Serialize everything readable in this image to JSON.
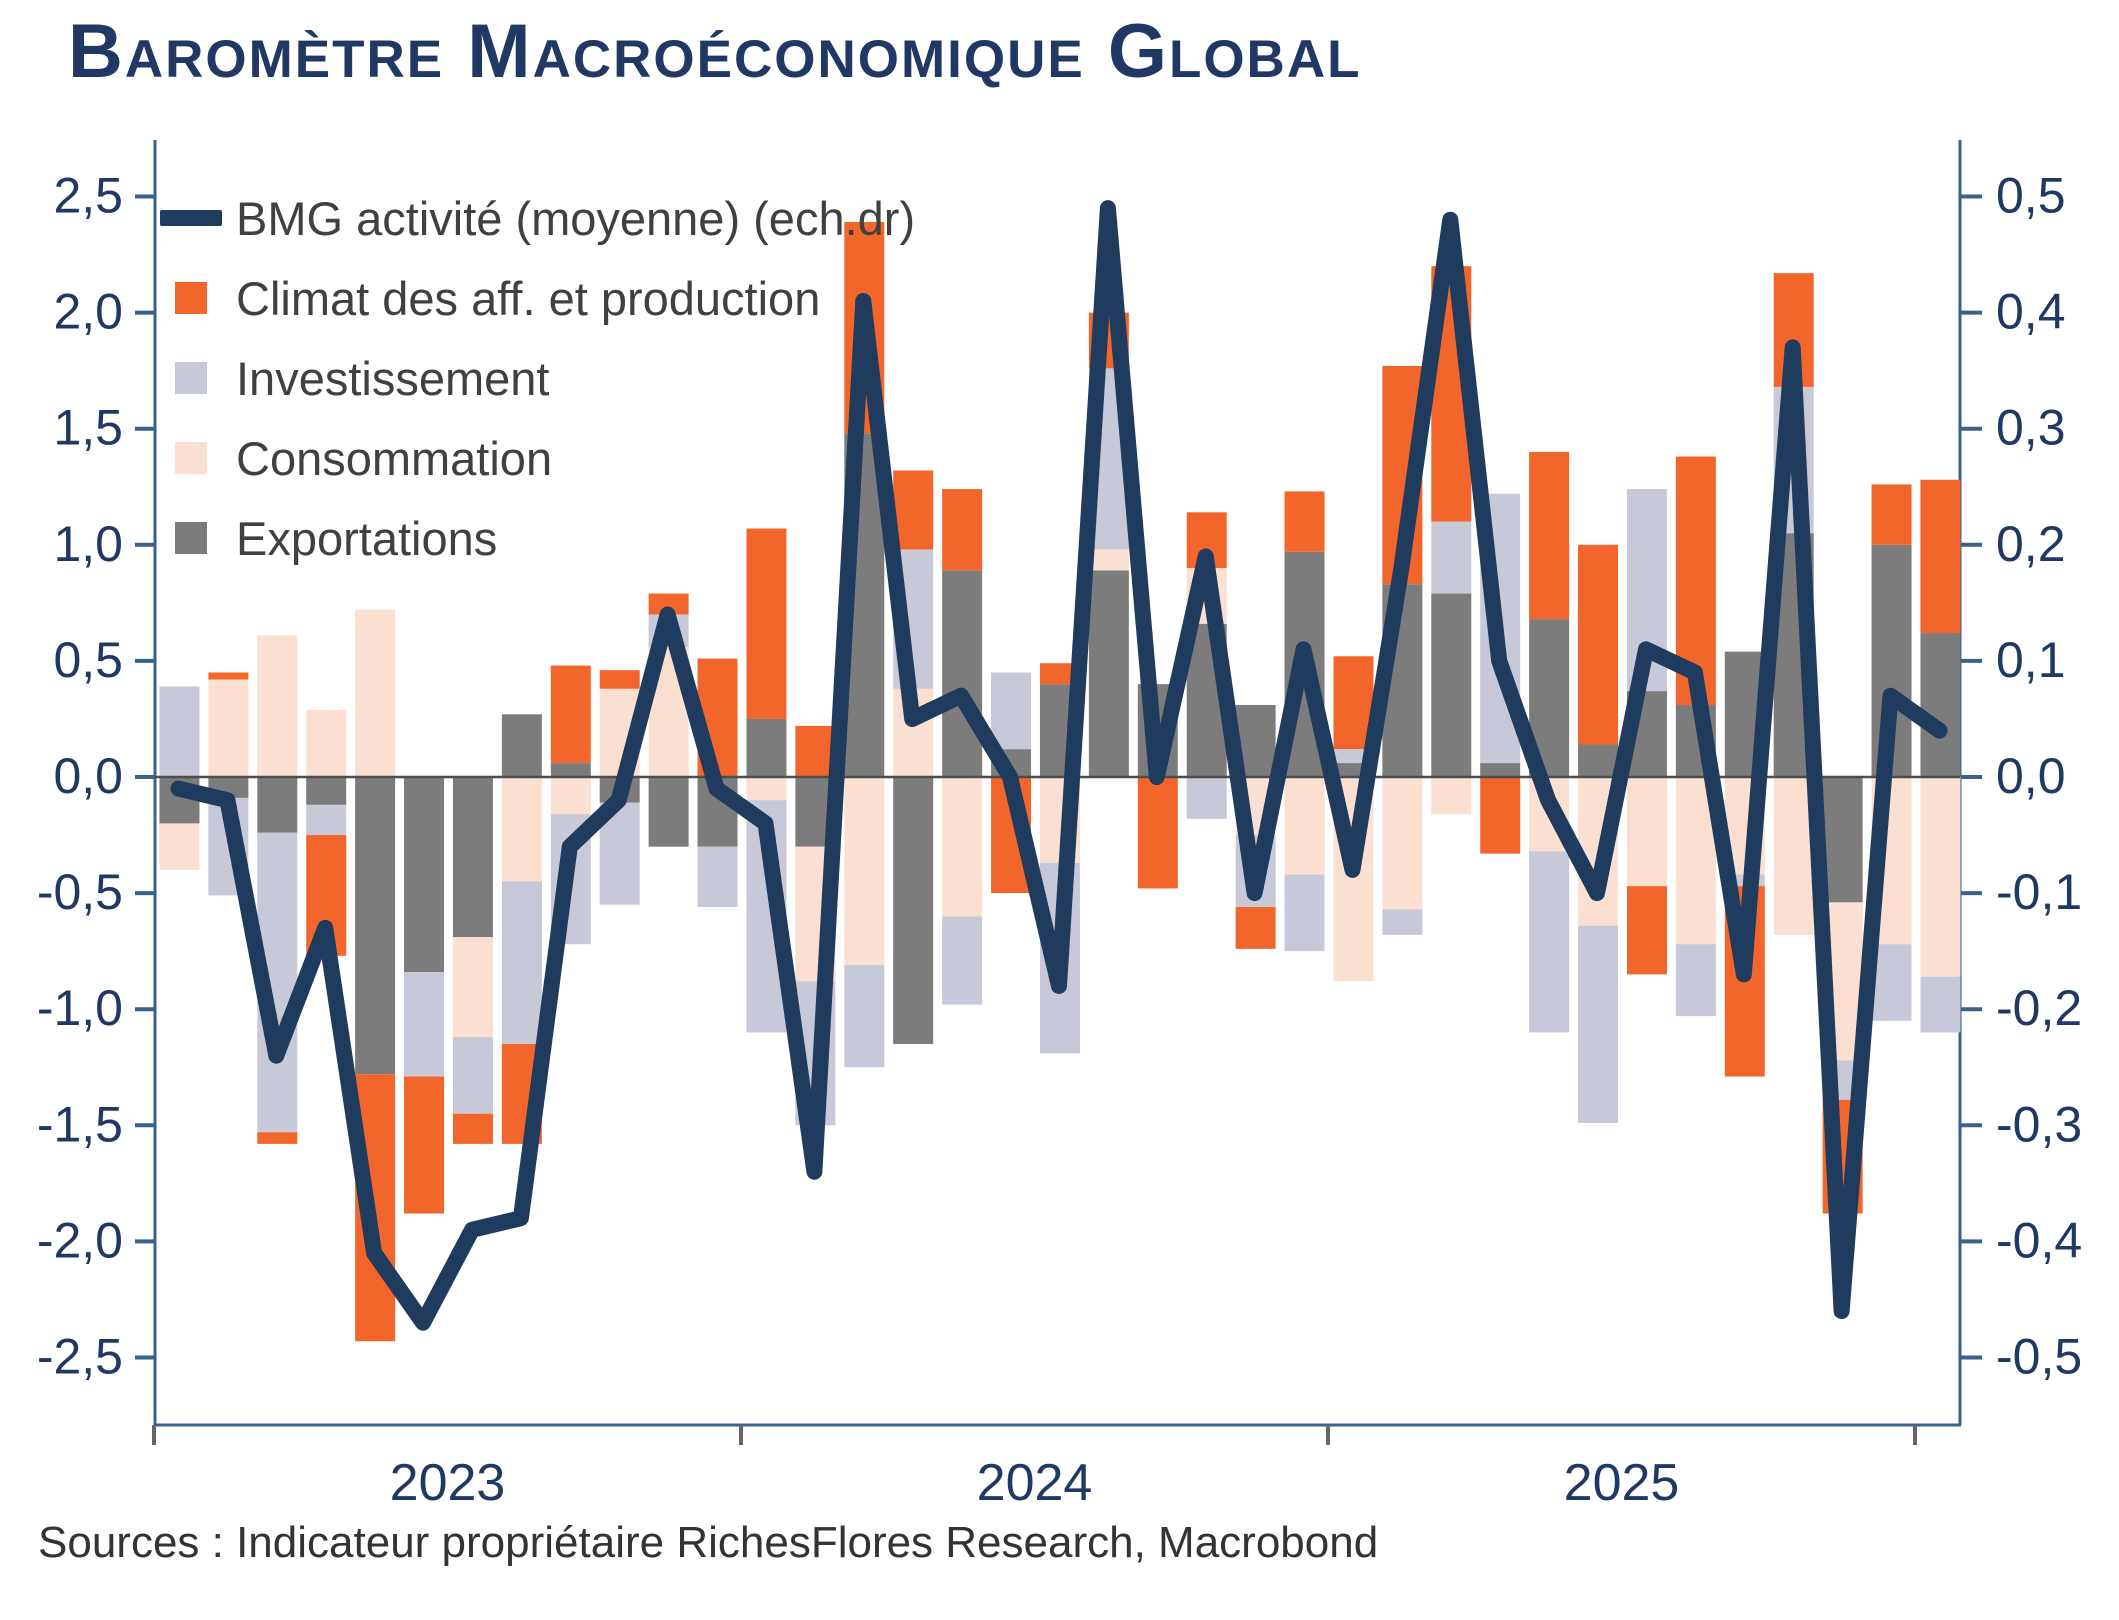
{
  "title": "Baromètre Macroéconomique Global",
  "source_note": "Sources : Indicateur propriétaire RichesFlores Research, Macrobond",
  "colors": {
    "navy_line": "#1F3B5D",
    "orange": "#F2662B",
    "lavender": "#C7C9D8",
    "peach": "#FBDFD1",
    "gray": "#7C7C7C",
    "axis_line": "#38618C",
    "axis_text": "#1F3864",
    "zero_line": "#4D4D4D",
    "year_tick": "#666666"
  },
  "chart_data": {
    "type": "combo-stacked-bar-line",
    "title": "Baromètre Macroéconomique Global",
    "grid": "off",
    "legend_position": "top-left-inside",
    "months": [
      "2023-01",
      "2023-02",
      "2023-03",
      "2023-04",
      "2023-05",
      "2023-06",
      "2023-07",
      "2023-08",
      "2023-09",
      "2023-10",
      "2023-11",
      "2023-12",
      "2024-01",
      "2024-02",
      "2024-03",
      "2024-04",
      "2024-05",
      "2024-06",
      "2024-07",
      "2024-08",
      "2024-09",
      "2024-10",
      "2024-11",
      "2024-12",
      "2025-01",
      "2025-02",
      "2025-03",
      "2025-04",
      "2025-05",
      "2025-06",
      "2025-07",
      "2025-08",
      "2025-09",
      "2025-10",
      "2025-11",
      "2025-12",
      "2026-01"
    ],
    "x_year_labels": [
      "2023",
      "2024",
      "2025"
    ],
    "left_axis": {
      "ticks": [
        2.5,
        2.0,
        1.5,
        1.0,
        0.5,
        0.0,
        -0.5,
        -1.0,
        -1.5,
        -2.0,
        -2.5
      ],
      "applies_to": "bars"
    },
    "right_axis": {
      "ticks": [
        0.5,
        0.4,
        0.3,
        0.2,
        0.1,
        0.0,
        -0.1,
        -0.2,
        -0.3,
        -0.4,
        -0.5
      ],
      "applies_to": "line"
    },
    "stack_order_from_zero": [
      "Exportations",
      "Consommation",
      "Investissement",
      "Climat des aff. et production"
    ],
    "series": [
      {
        "name": "BMG activité (moyenne) (ech.dr)",
        "type": "line",
        "axis": "right",
        "color_key": "navy_line",
        "values": [
          -0.01,
          -0.02,
          -0.24,
          -0.13,
          -0.41,
          -0.47,
          -0.39,
          -0.38,
          -0.06,
          -0.02,
          0.14,
          -0.01,
          -0.04,
          -0.34,
          0.41,
          0.05,
          0.07,
          0.0,
          -0.18,
          0.49,
          0.0,
          0.19,
          -0.1,
          0.11,
          -0.08,
          0.18,
          0.48,
          0.1,
          -0.02,
          -0.1,
          0.11,
          0.09,
          -0.17,
          0.37,
          -0.46,
          0.07,
          0.04
        ]
      },
      {
        "name": "Climat des aff. et production",
        "type": "bar",
        "axis": "left",
        "color_key": "orange",
        "values": [
          0,
          0.03,
          -0.05,
          -0.52,
          -1.15,
          -0.59,
          -0.13,
          -0.43,
          0.42,
          0.08,
          0.09,
          0.51,
          0.82,
          0.22,
          0.91,
          0.34,
          0.35,
          -0.5,
          0.09,
          0.24,
          -0.48,
          0.24,
          -0.18,
          0.26,
          0.4,
          0.94,
          1.1,
          -0.33,
          0.72,
          0.86,
          -0.38,
          1.07,
          -0.82,
          0.49,
          -0.49,
          0.26,
          0.66
        ]
      },
      {
        "name": "Investissement",
        "type": "bar",
        "axis": "left",
        "color_key": "lavender",
        "values": [
          0.39,
          -0.42,
          -1.29,
          -0.13,
          0,
          -0.45,
          -0.33,
          -0.7,
          -0.56,
          -0.44,
          0.14,
          -0.26,
          -1.0,
          -0.62,
          -0.44,
          0.6,
          -0.38,
          0.33,
          -0.82,
          0.78,
          0,
          -0.18,
          -0.31,
          -0.33,
          0.06,
          -0.11,
          0.31,
          1.16,
          -0.78,
          -0.85,
          0.87,
          -0.31,
          -0.05,
          0.63,
          -0.17,
          -0.33,
          -0.24
        ]
      },
      {
        "name": "Consommation",
        "type": "bar",
        "axis": "left",
        "color_key": "peach",
        "values": [
          -0.2,
          0.42,
          0.61,
          0.29,
          0.72,
          0,
          -0.43,
          -0.45,
          -0.16,
          0.38,
          0.56,
          0,
          -0.1,
          -0.58,
          -0.81,
          0.38,
          -0.6,
          0,
          -0.37,
          0.09,
          0,
          0.24,
          -0.25,
          -0.42,
          -0.88,
          -0.57,
          -0.16,
          0,
          -0.32,
          -0.64,
          -0.47,
          -0.72,
          -0.42,
          -0.68,
          -0.68,
          -0.72,
          -0.86
        ]
      },
      {
        "name": "Exportations",
        "type": "bar",
        "axis": "left",
        "color_key": "gray",
        "values": [
          -0.2,
          -0.09,
          -0.24,
          -0.12,
          -1.28,
          -0.84,
          -0.69,
          0.27,
          0.06,
          -0.11,
          -0.3,
          -0.3,
          0.25,
          -0.3,
          1.48,
          -1.15,
          0.89,
          0.12,
          0.4,
          0.89,
          0.4,
          0.66,
          0.31,
          0.97,
          0.06,
          0.83,
          0.79,
          0.06,
          0.68,
          0.14,
          0.37,
          0.31,
          0.54,
          1.05,
          -0.54,
          1.0,
          0.62
        ]
      }
    ]
  }
}
